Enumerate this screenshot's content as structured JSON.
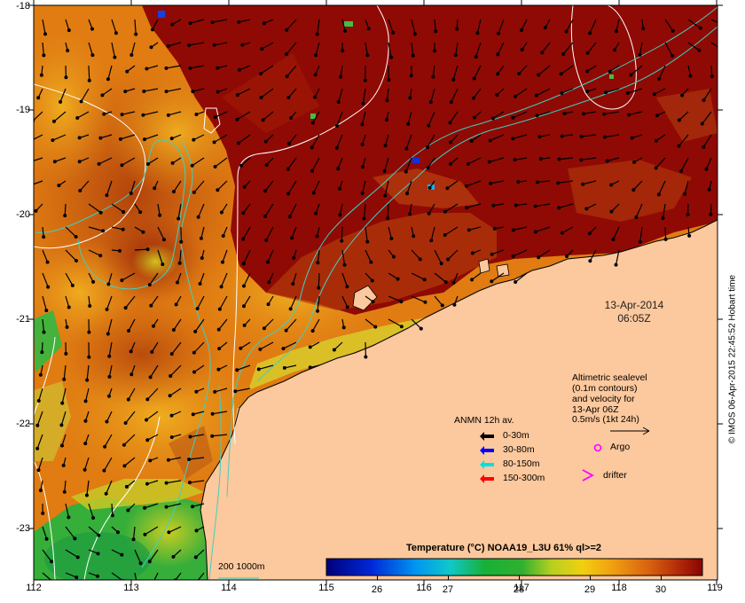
{
  "map": {
    "x_ticks": [
      "112",
      "113",
      "114",
      "115",
      "116",
      "117",
      "118",
      "119"
    ],
    "y_ticks": [
      "-18",
      "-19",
      "-20",
      "-21",
      "-22",
      "-23"
    ],
    "colors": {
      "land": "#fcc89d",
      "ocean_warm": "#8f0a04",
      "ocean_mid": "#e07a10",
      "ocean_cool": "#2fae3a"
    }
  },
  "date": {
    "day": "13-Apr-2014",
    "time": "06:05Z"
  },
  "altimetry": {
    "lines": [
      "Altimetric sealevel",
      "(0.1m contours)",
      "and velocity for",
      "13-Apr 06Z",
      "0.5m/s (1kt 24h)"
    ]
  },
  "anmn": {
    "title": "ANMN 12h av.",
    "items": [
      {
        "label": "0-30m",
        "color": "#000000"
      },
      {
        "label": "30-80m",
        "color": "#0000ff"
      },
      {
        "label": "80-150m",
        "color": "#00e0e0"
      },
      {
        "label": "150-300m",
        "color": "#ff0000"
      }
    ]
  },
  "markers": {
    "argo": "Argo",
    "drifter": "drifter",
    "argo_color": "#ff00ff"
  },
  "bathymetry": {
    "label": "200  1000m",
    "color": "#40d0c0"
  },
  "colorbar": {
    "title": "Temperature (°C) NOAA19_L3U 61% ql>=2",
    "min": 25.2,
    "max": 30.5,
    "ticks": [
      "26",
      "27",
      "28",
      "29",
      "30"
    ]
  },
  "credit": "© IMOS 06-Apr-2015 22:45:52 Hobart time"
}
